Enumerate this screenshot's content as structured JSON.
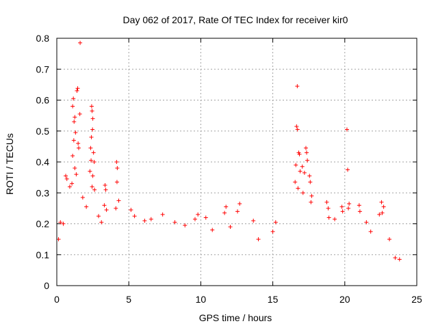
{
  "chart_data": {
    "type": "scatter",
    "title": "Day 062 of 2017, Rate Of TEC Index for receiver kir0",
    "xlabel": "GPS time / hours",
    "ylabel": "ROTI / TECUs",
    "xlim": [
      0,
      25
    ],
    "ylim": [
      0,
      0.8
    ],
    "x_ticks": [
      "0",
      "5",
      "10",
      "15",
      "20",
      "25"
    ],
    "y_ticks": [
      "0",
      "0.1",
      "0.2",
      "0.3",
      "0.4",
      "0.5",
      "0.6",
      "0.7",
      "0.8"
    ],
    "grid": true,
    "marker": "plus",
    "color": "#ff0000",
    "series": [
      {
        "points": [
          [
            1.62,
            0.785
          ],
          [
            1.45,
            0.638
          ],
          [
            1.4,
            0.63
          ],
          [
            1.15,
            0.605
          ],
          [
            1.1,
            0.58
          ],
          [
            1.25,
            0.545
          ],
          [
            1.2,
            0.53
          ],
          [
            1.6,
            0.555
          ],
          [
            2.42,
            0.58
          ],
          [
            2.45,
            0.565
          ],
          [
            2.5,
            0.54
          ],
          [
            2.48,
            0.505
          ],
          [
            2.4,
            0.48
          ],
          [
            1.3,
            0.495
          ],
          [
            1.48,
            0.46
          ],
          [
            1.52,
            0.445
          ],
          [
            1.18,
            0.47
          ],
          [
            1.1,
            0.42
          ],
          [
            2.35,
            0.445
          ],
          [
            2.55,
            0.43
          ],
          [
            2.38,
            0.405
          ],
          [
            2.6,
            0.4
          ],
          [
            1.25,
            0.38
          ],
          [
            1.35,
            0.36
          ],
          [
            0.62,
            0.355
          ],
          [
            0.7,
            0.345
          ],
          [
            0.9,
            0.32
          ],
          [
            1.05,
            0.33
          ],
          [
            2.3,
            0.37
          ],
          [
            2.5,
            0.355
          ],
          [
            2.45,
            0.32
          ],
          [
            2.62,
            0.31
          ],
          [
            3.35,
            0.325
          ],
          [
            3.4,
            0.31
          ],
          [
            4.15,
            0.4
          ],
          [
            4.2,
            0.38
          ],
          [
            4.18,
            0.335
          ],
          [
            3.3,
            0.26
          ],
          [
            3.45,
            0.245
          ],
          [
            4.3,
            0.275
          ],
          [
            4.1,
            0.25
          ],
          [
            5.15,
            0.245
          ],
          [
            5.4,
            0.225
          ],
          [
            6.1,
            0.21
          ],
          [
            6.55,
            0.215
          ],
          [
            7.35,
            0.23
          ],
          [
            8.2,
            0.205
          ],
          [
            9.8,
            0.23
          ],
          [
            9.6,
            0.215
          ],
          [
            10.35,
            0.22
          ],
          [
            11.65,
            0.235
          ],
          [
            11.75,
            0.255
          ],
          [
            12.7,
            0.265
          ],
          [
            12.55,
            0.24
          ],
          [
            13.65,
            0.21
          ],
          [
            16.7,
            0.645
          ],
          [
            16.65,
            0.515
          ],
          [
            16.72,
            0.505
          ],
          [
            16.8,
            0.43
          ],
          [
            16.85,
            0.425
          ],
          [
            16.6,
            0.39
          ],
          [
            17.05,
            0.385
          ],
          [
            16.9,
            0.37
          ],
          [
            17.3,
            0.445
          ],
          [
            17.35,
            0.43
          ],
          [
            17.4,
            0.405
          ],
          [
            17.2,
            0.365
          ],
          [
            17.55,
            0.355
          ],
          [
            17.6,
            0.335
          ],
          [
            16.55,
            0.335
          ],
          [
            16.75,
            0.315
          ],
          [
            17.1,
            0.3
          ],
          [
            17.7,
            0.29
          ],
          [
            17.65,
            0.27
          ],
          [
            18.75,
            0.27
          ],
          [
            18.85,
            0.25
          ],
          [
            18.9,
            0.22
          ],
          [
            19.8,
            0.255
          ],
          [
            19.85,
            0.24
          ],
          [
            20.15,
            0.505
          ],
          [
            20.2,
            0.375
          ],
          [
            20.3,
            0.265
          ],
          [
            20.25,
            0.25
          ],
          [
            21.0,
            0.26
          ],
          [
            21.05,
            0.24
          ],
          [
            22.55,
            0.27
          ],
          [
            22.7,
            0.255
          ],
          [
            22.6,
            0.235
          ],
          [
            22.4,
            0.23
          ],
          [
            21.5,
            0.205
          ],
          [
            15.2,
            0.205
          ],
          [
            0.12,
            0.15
          ],
          [
            0.25,
            0.205
          ],
          [
            0.45,
            0.2
          ],
          [
            1.8,
            0.285
          ],
          [
            2.05,
            0.255
          ],
          [
            2.9,
            0.225
          ],
          [
            3.1,
            0.205
          ],
          [
            8.9,
            0.195
          ],
          [
            10.8,
            0.18
          ],
          [
            12.05,
            0.19
          ],
          [
            14.0,
            0.15
          ],
          [
            15.0,
            0.175
          ],
          [
            19.3,
            0.215
          ],
          [
            21.8,
            0.175
          ],
          [
            23.1,
            0.15
          ],
          [
            23.5,
            0.09
          ],
          [
            23.8,
            0.085
          ]
        ]
      }
    ]
  }
}
